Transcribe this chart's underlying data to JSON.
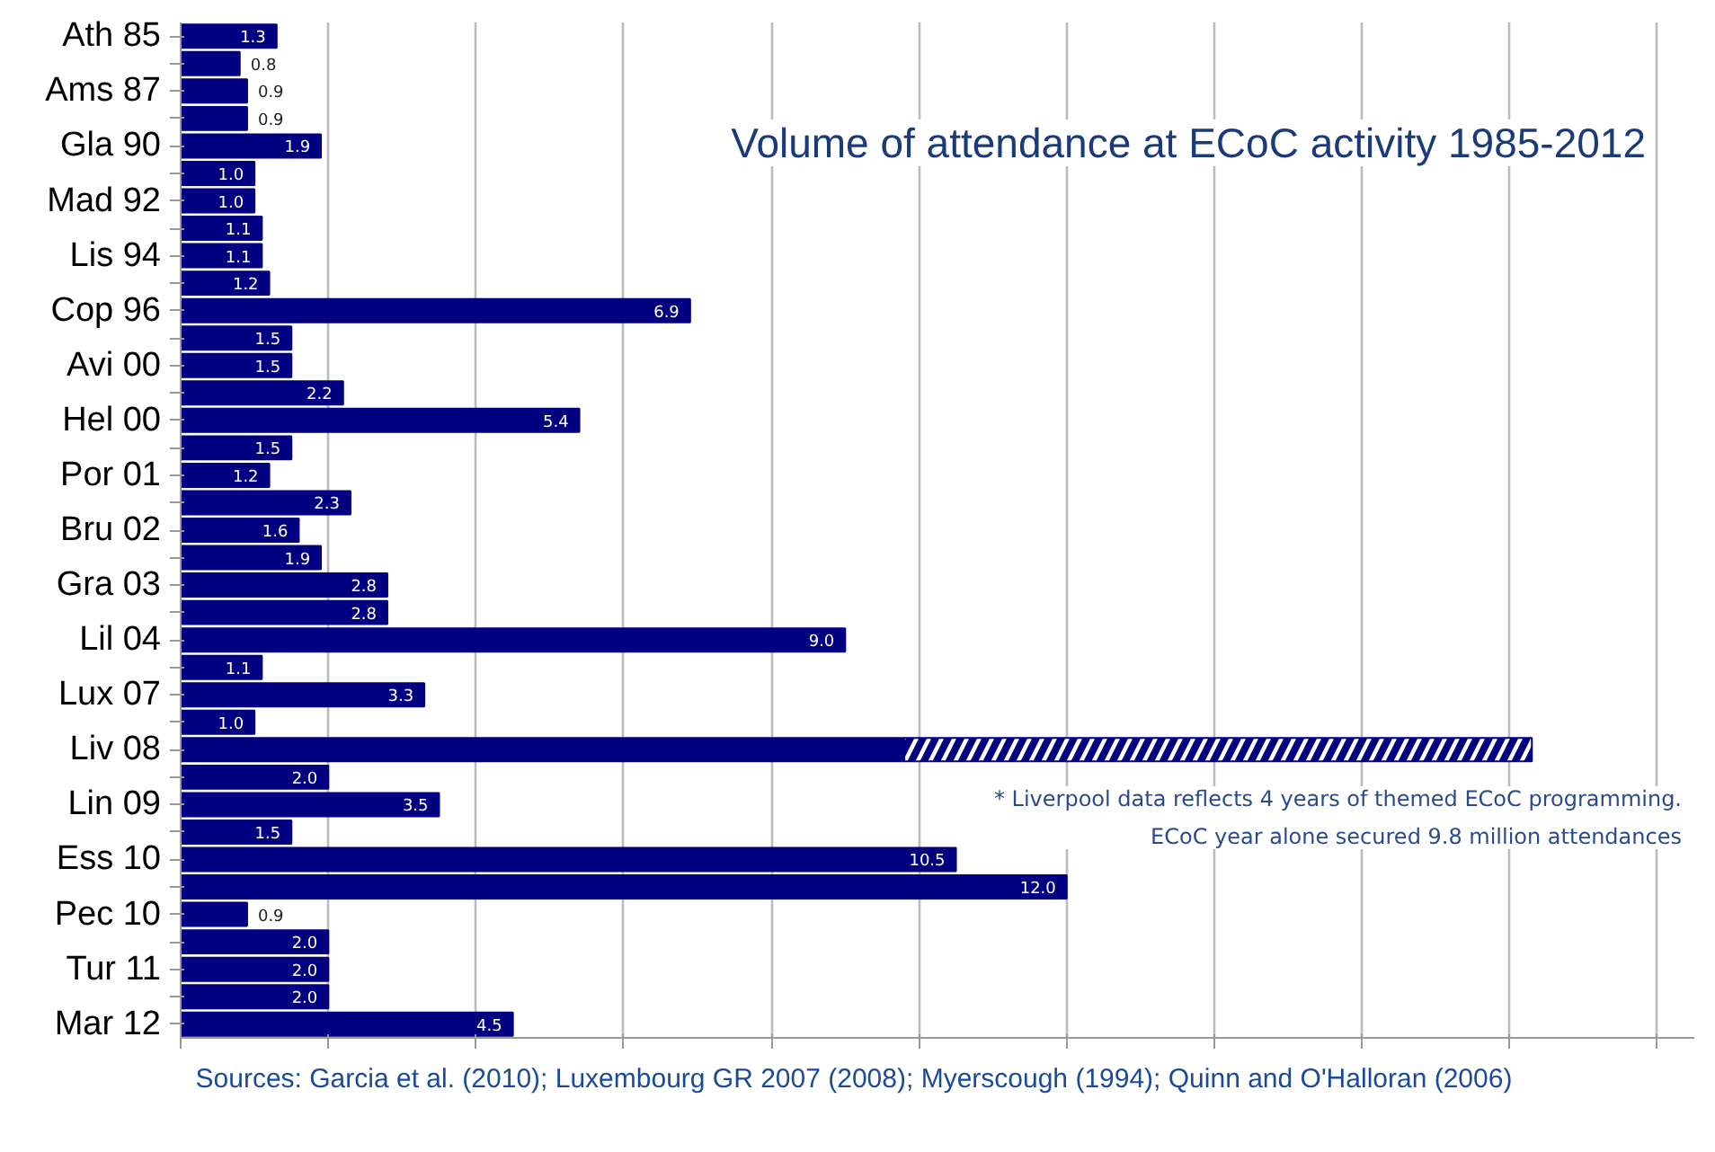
{
  "chart_data": {
    "type": "bar",
    "orientation": "horizontal",
    "stacked": true,
    "title": "Volume of attendance at ECoC activity 1985-2012",
    "categories": [
      "Ath 85",
      null,
      "Ams 87",
      null,
      "Gla 90",
      null,
      "Mad 92",
      null,
      "Lis 94",
      null,
      "Cop 96",
      null,
      "Avi 00",
      null,
      "Hel 00",
      null,
      "Por 01",
      null,
      "Bru 02",
      null,
      "Gra 03",
      null,
      "Lil 04",
      null,
      "Lux 07",
      null,
      "Liv 08",
      null,
      "Lin 09",
      null,
      "Ess 10",
      null,
      "Pec 10",
      null,
      "Tur 11",
      null,
      "Mar 12"
    ],
    "series": [
      {
        "color": "#000080",
        "values": [
          1.3,
          0.8,
          0.9,
          0.9,
          1.9,
          1.0,
          1.0,
          1.1,
          1.1,
          1.2,
          6.9,
          1.5,
          1.5,
          2.2,
          5.4,
          1.5,
          1.2,
          2.3,
          1.6,
          1.9,
          2.8,
          2.8,
          9.0,
          1.1,
          3.3,
          1.0,
          9.8,
          2.0,
          3.5,
          1.5,
          10.5,
          12.0,
          0.9,
          2.0,
          2.0,
          2.0,
          4.5
        ],
        "value_labels": [
          "1.3",
          "0.8",
          "0.9",
          "0.9",
          "1.9",
          "1.0",
          "1.0",
          "1.1",
          "1.1",
          "1.2",
          "6.9",
          "1.5",
          "1.5",
          "2.2",
          "5.4",
          "1.5",
          "1.2",
          "2.3",
          "1.6",
          "1.9",
          "2.8",
          "2.8",
          "9.0",
          "1.1",
          "3.3",
          "1.0",
          null,
          "2.0",
          "3.5",
          "1.5",
          "10.5",
          "12.0",
          "0.9",
          "2.0",
          "2.0",
          "2.0",
          "4.5"
        ]
      },
      {
        "color": "#000080",
        "values": [
          null,
          null,
          null,
          null,
          null,
          null,
          null,
          null,
          null,
          null,
          null,
          null,
          null,
          null,
          null,
          null,
          null,
          null,
          null,
          null,
          null,
          null,
          null,
          null,
          null,
          null,
          8.5,
          null,
          null,
          null,
          null,
          null,
          null,
          null,
          null,
          null,
          null
        ]
      }
    ],
    "xlim": [
      0,
      20.5
    ],
    "xticks": [
      {
        "value": 0,
        "label": null
      },
      {
        "value": 2,
        "label": null
      },
      {
        "value": 4,
        "label": null
      },
      {
        "value": 6,
        "label": null
      },
      {
        "value": 8,
        "label": null
      },
      {
        "value": 10,
        "label": null
      },
      {
        "value": 12,
        "label": null
      },
      {
        "value": 14,
        "label": null
      },
      {
        "value": 16,
        "label": null
      },
      {
        "value": 18,
        "label": null
      },
      {
        "value": 20,
        "label": null
      }
    ],
    "grid": "x",
    "tick_labels": "y",
    "annotations": [
      "* Liverpool data reflects 4 years of themed ECoC programming.\nECoC year alone secured 9.8 million attendances",
      "Sources: Garcia et al. (2010); Luxembourg GR 2007 (2008); Myerscough (1994); Quinn and O'Halloran (2006)"
    ]
  }
}
